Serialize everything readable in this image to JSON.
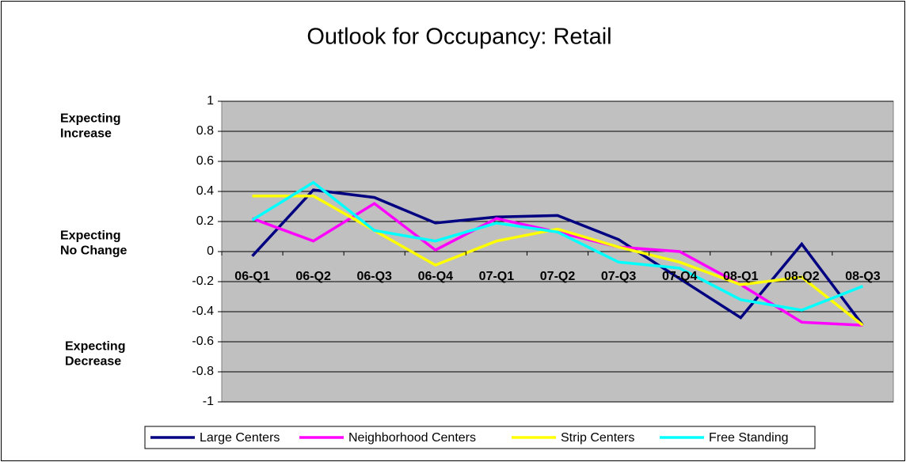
{
  "chart_data": {
    "type": "line",
    "title": "Outlook for Occupancy:  Retail",
    "categories": [
      "06-Q1",
      "06-Q2",
      "06-Q3",
      "06-Q4",
      "07-Q1",
      "07-Q2",
      "07-Q3",
      "07-Q4",
      "08-Q1",
      "08-Q2",
      "08-Q3"
    ],
    "series": [
      {
        "name": "Large Centers",
        "color": "#000080",
        "values": [
          -0.03,
          0.41,
          0.36,
          0.19,
          0.23,
          0.24,
          0.08,
          -0.18,
          -0.44,
          0.05,
          -0.49
        ]
      },
      {
        "name": "Neighborhood Centers",
        "color": "#ff00ff",
        "values": [
          0.22,
          0.07,
          0.32,
          0.01,
          0.22,
          0.13,
          0.03,
          0.0,
          -0.22,
          -0.47,
          -0.49
        ]
      },
      {
        "name": "Strip Centers",
        "color": "#ffff00",
        "values": [
          0.37,
          0.37,
          0.14,
          -0.09,
          0.07,
          0.15,
          0.03,
          -0.07,
          -0.22,
          -0.17,
          -0.49
        ]
      },
      {
        "name": "Free Standing",
        "color": "#00ffff",
        "values": [
          0.21,
          0.46,
          0.14,
          0.07,
          0.19,
          0.13,
          -0.07,
          -0.11,
          -0.32,
          -0.39,
          -0.23
        ]
      }
    ],
    "ylim": [
      -1,
      1
    ],
    "yticks": [
      -1,
      -0.8,
      -0.6,
      -0.4,
      -0.2,
      0,
      0.2,
      0.4,
      0.6,
      0.8,
      1
    ],
    "grid": true,
    "annotations": [
      [
        "Expecting",
        "Increase"
      ],
      [
        "Expecting",
        "No Change"
      ],
      [
        "Expecting",
        "Decrease"
      ]
    ],
    "legend": "bottom"
  }
}
